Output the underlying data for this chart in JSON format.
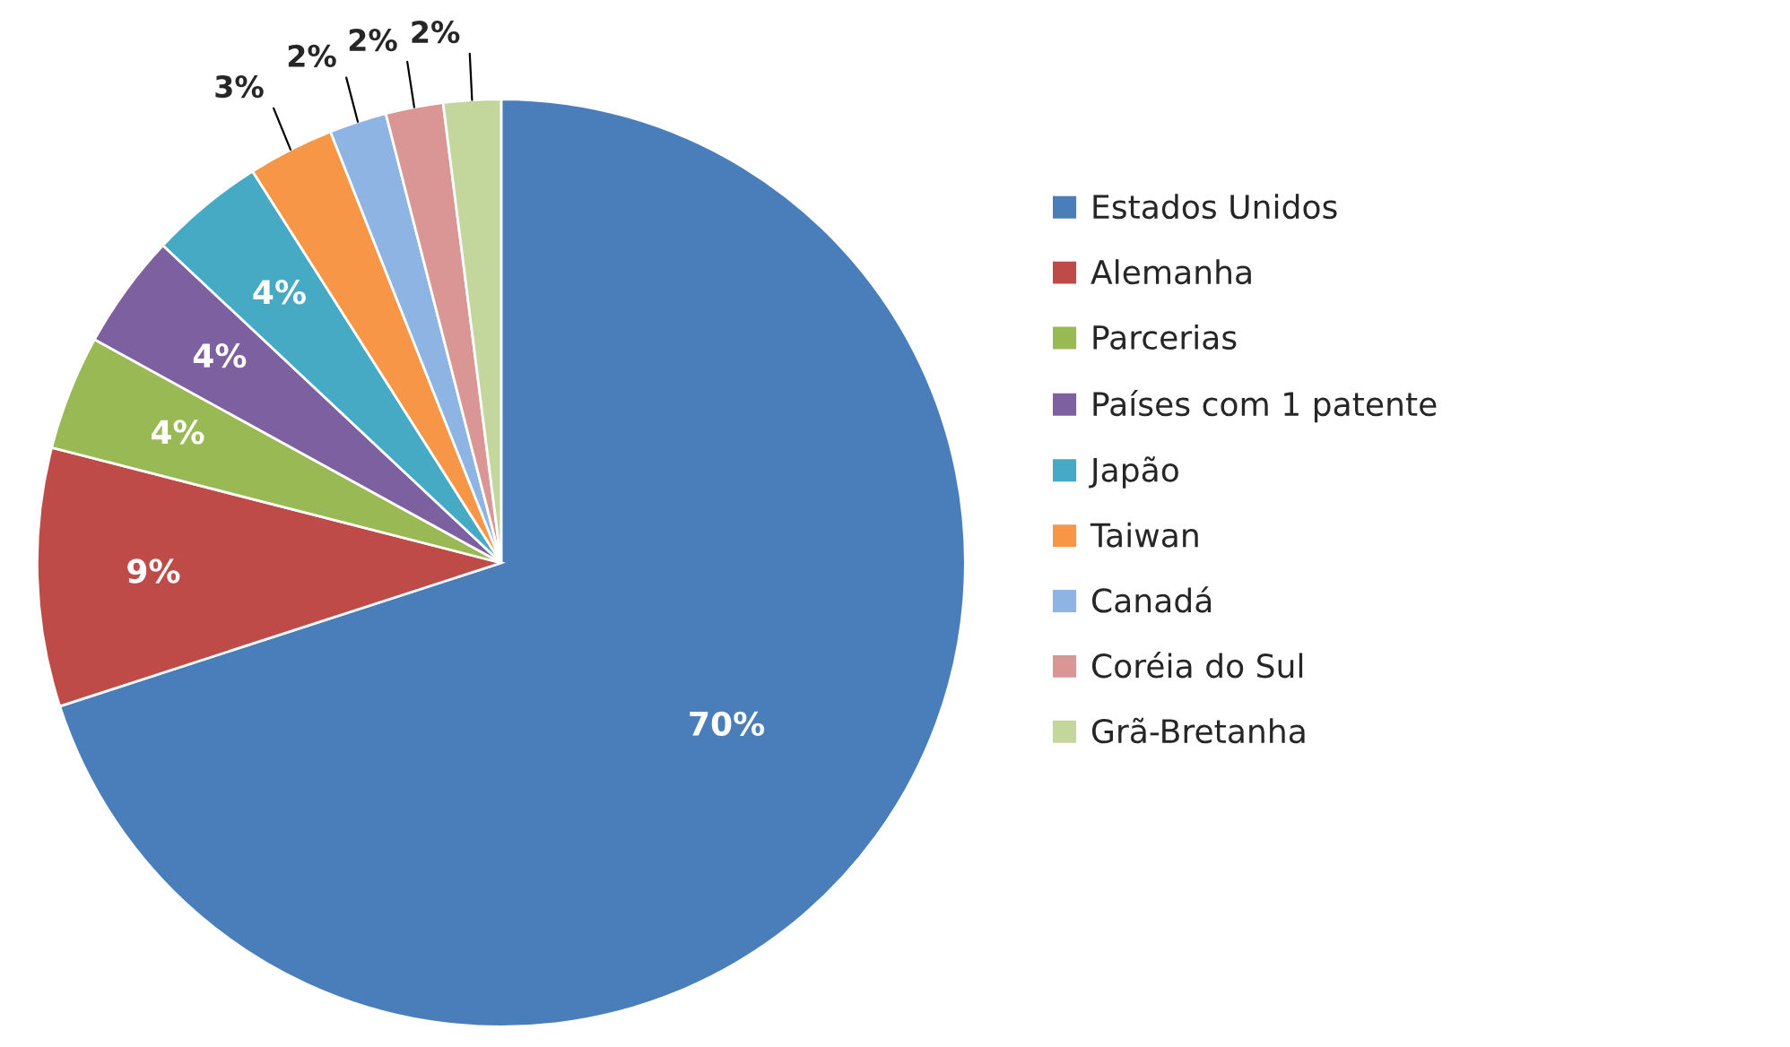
{
  "chart_data": {
    "type": "pie",
    "categories": [
      "Estados Unidos",
      "Alemanha",
      "Parcerias",
      "Países com 1 patente",
      "Japão",
      "Taiwan",
      "Canadá",
      "Coréia do Sul",
      "Grã-Bretanha"
    ],
    "values": [
      70,
      9,
      4,
      4,
      4,
      3,
      2,
      2,
      2
    ],
    "colors": [
      "#4a7ebb",
      "#be4b48",
      "#98b954",
      "#7d60a0",
      "#46aac5",
      "#f79646",
      "#8eb4e3",
      "#d99694",
      "#c3d69b"
    ],
    "value_labels": [
      "70%",
      "9%",
      "4%",
      "4%",
      "4%",
      "3%",
      "2%",
      "2%",
      "2%"
    ],
    "legend": "right"
  }
}
